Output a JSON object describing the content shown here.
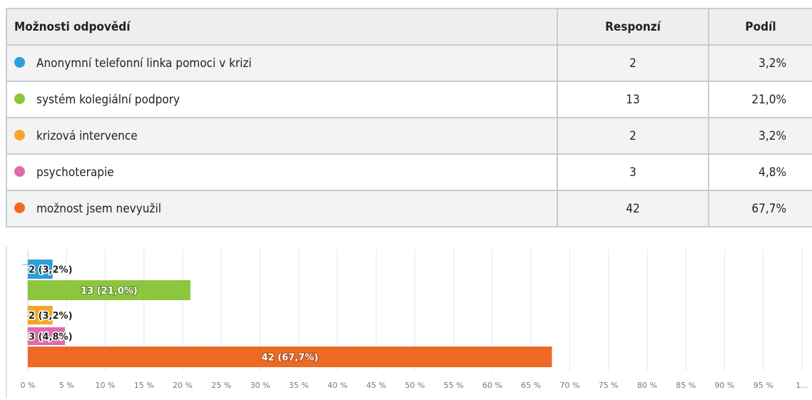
{
  "table": {
    "headers": [
      "Možnosti odpovědí",
      "Responzí",
      "Podíl"
    ],
    "rows": [
      {
        "label": "Anonymní telefonní linka pomoci v krizi",
        "count": "2",
        "share": "3,2%",
        "color": "#2b9fd9"
      },
      {
        "label": "systém kolegiální podpory",
        "count": "13",
        "share": "21,0%",
        "color": "#8cc63e"
      },
      {
        "label": "krizová intervence",
        "count": "2",
        "share": "3,2%",
        "color": "#f5a623"
      },
      {
        "label": "psychoterapie",
        "count": "3",
        "share": "4,8%",
        "color": "#e06aa9"
      },
      {
        "label": "možnost jsem nevyužil",
        "count": "42",
        "share": "67,7%",
        "color": "#ee6a24"
      }
    ]
  },
  "chart_data": {
    "type": "bar",
    "orientation": "horizontal",
    "categories": [
      "Anonymní telefonní linka pomoci v krizi",
      "systém kolegiální podpory",
      "krizová intervence",
      "psychoterapie",
      "možnost jsem nevyužil"
    ],
    "values": [
      3.2,
      21.0,
      3.2,
      4.8,
      67.7
    ],
    "data_labels": [
      "2 (3,2%)",
      "13 (21,0%)",
      "2 (3,2%)",
      "3 (4,8%)",
      "42 (67,7%)"
    ],
    "colors": [
      "#2b9fd9",
      "#8cc63e",
      "#f5a623",
      "#e06aa9",
      "#ee6a24"
    ],
    "xlim": [
      0,
      100
    ],
    "x_ticks": [
      "0 %",
      "5 %",
      "10 %",
      "15 %",
      "20 %",
      "25 %",
      "30 %",
      "35 %",
      "40 %",
      "45 %",
      "50 %",
      "55 %",
      "60 %",
      "65 %",
      "70 %",
      "75 %",
      "80 %",
      "85 %",
      "90 %",
      "95 %",
      "1..."
    ],
    "grid": true,
    "legend": "none"
  }
}
